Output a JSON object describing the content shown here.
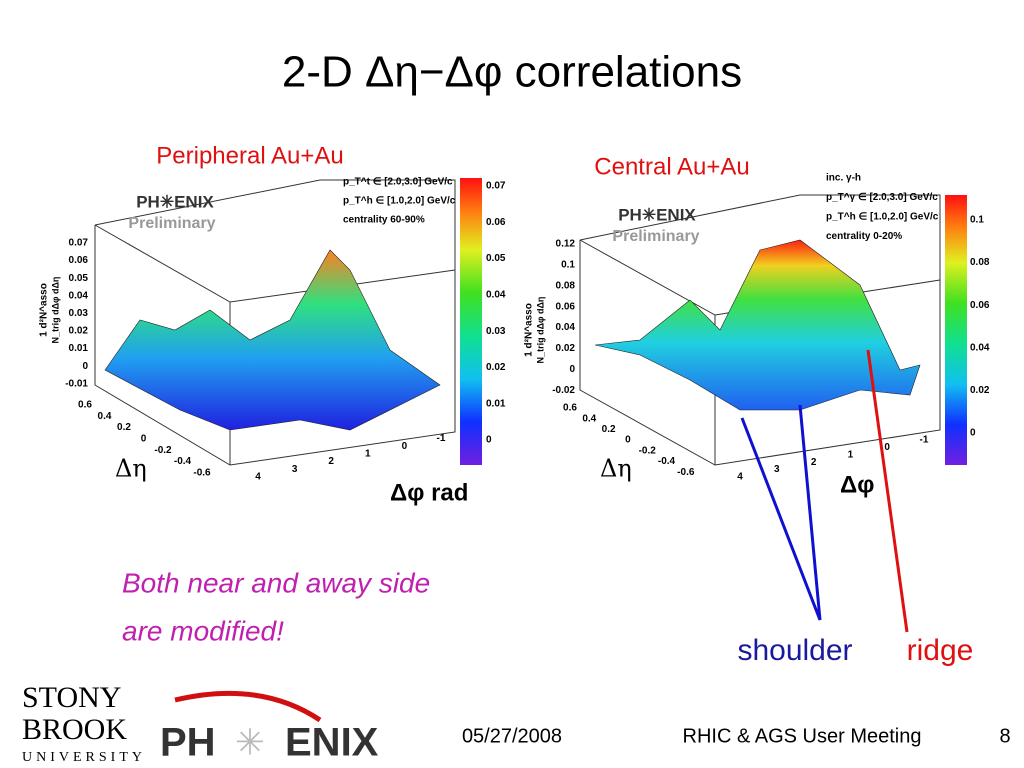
{
  "title": "2-D Δη−Δφ correlations",
  "panels": [
    {
      "label": "Peripheral Au+Au",
      "logo": "PH✳ENIX",
      "preliminary": "Preliminary",
      "legend": [
        "p_T^t ∈ [2.0,3.0] GeV/c",
        "p_T^h ∈ [1.0,2.0] GeV/c",
        "centrality 60-90%"
      ],
      "z_label_top": "1    d²N^asso",
      "z_label_bottom": "N_trig dΔφ dΔη",
      "z_ticks": [
        "0.07",
        "0.06",
        "0.05",
        "0.04",
        "0.03",
        "0.02",
        "0.01",
        "0",
        "-0.01"
      ],
      "eta_ticks": [
        "0.6",
        "0.4",
        "0.2",
        "0",
        "-0.2",
        "-0.4",
        "-0.6"
      ],
      "phi_ticks": [
        "4",
        "3",
        "2",
        "1",
        "0",
        "-1"
      ],
      "colorbar_ticks": [
        "0.07",
        "0.06",
        "0.05",
        "0.04",
        "0.03",
        "0.02",
        "0.01",
        "0"
      ],
      "x_label": "Δη",
      "y_label": "Δφ rad"
    },
    {
      "label": "Central Au+Au",
      "logo": "PH✳ENIX",
      "preliminary": "Preliminary",
      "legend": [
        "inc. γ-h",
        "p_T^γ ∈ [2.0,3.0] GeV/c",
        "p_T^h ∈ [1.0,2.0] GeV/c",
        "centrality 0-20%"
      ],
      "z_label_top": "1    d²N^asso",
      "z_label_bottom": "N_trig dΔφ dΔη",
      "z_ticks": [
        "0.12",
        "0.1",
        "0.08",
        "0.06",
        "0.04",
        "0.02",
        "0",
        "-0.02"
      ],
      "eta_ticks": [
        "0.6",
        "0.4",
        "0.2",
        "0",
        "-0.2",
        "-0.4",
        "-0.6"
      ],
      "phi_ticks": [
        "4",
        "3",
        "2",
        "1",
        "0",
        "-1"
      ],
      "colorbar_ticks": [
        "0.1",
        "0.08",
        "0.06",
        "0.04",
        "0.02",
        "0"
      ],
      "x_label": "Δη",
      "y_label": "Δφ"
    }
  ],
  "annotation": [
    "Both near and away side",
    "are modified!"
  ],
  "shoulder": "shoulder",
  "ridge": "ridge",
  "footer": {
    "university": [
      "STONY",
      "BROOK",
      "UNIVERSITY"
    ],
    "logo": [
      "PH",
      "ENIX"
    ],
    "date": "05/27/2008",
    "meeting": "RHIC & AGS User Meeting",
    "page": "8"
  }
}
